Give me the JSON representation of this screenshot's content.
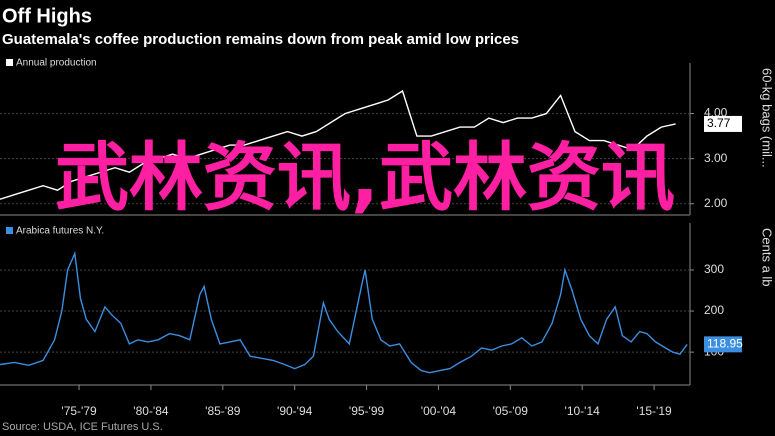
{
  "header": {
    "title": "Off Highs",
    "subtitle": "Guatemala's coffee production remains down from peak amid low prices"
  },
  "source": "Source: USDA, ICE Futures U.S.",
  "overlay": "武林资讯,武林资讯",
  "chart_data": [
    {
      "type": "line",
      "ylabel": "60-kg bags (mil...",
      "x": [
        1972,
        1973,
        1974,
        1975,
        1976,
        1977,
        1978,
        1979,
        1980,
        1981,
        1982,
        1983,
        1984,
        1985,
        1986,
        1987,
        1988,
        1989,
        1990,
        1991,
        1992,
        1993,
        1994,
        1995,
        1996,
        1997,
        1998,
        1999,
        2000,
        2001,
        2002,
        2003,
        2004,
        2005,
        2006,
        2007,
        2008,
        2009,
        2010,
        2011,
        2012,
        2013,
        2014,
        2015,
        2016,
        2017,
        2018,
        2019
      ],
      "series": [
        {
          "name": "Annual production",
          "color": "#ffffff",
          "values": [
            2.1,
            2.2,
            2.3,
            2.4,
            2.3,
            2.5,
            2.6,
            2.7,
            2.8,
            2.7,
            2.9,
            3.0,
            3.1,
            3.0,
            3.1,
            3.2,
            3.3,
            3.3,
            3.4,
            3.5,
            3.6,
            3.5,
            3.6,
            3.8,
            4.0,
            4.1,
            4.2,
            4.3,
            4.5,
            3.5,
            3.5,
            3.6,
            3.7,
            3.7,
            3.9,
            3.8,
            3.9,
            3.9,
            4.0,
            4.4,
            3.6,
            3.4,
            3.4,
            3.3,
            3.2,
            3.5,
            3.7,
            3.77
          ]
        }
      ],
      "xlim": [
        1972,
        2020
      ],
      "ylim": [
        1.75,
        4.9
      ],
      "yticks": [
        {
          "value": 2,
          "label": "2.00"
        },
        {
          "value": 3,
          "label": "3.00"
        },
        {
          "value": 4,
          "label": "4.00"
        }
      ],
      "grid": true
    },
    {
      "type": "line",
      "ylabel": "Cents a lb",
      "x": [
        1972,
        1973,
        1974,
        1975,
        1975.8,
        1976.3,
        1976.7,
        1977.2,
        1977.6,
        1978,
        1978.6,
        1979.3,
        1979.8,
        1980.4,
        1981,
        1981.6,
        1982.3,
        1983,
        1983.8,
        1984.5,
        1985.2,
        1985.9,
        1986.2,
        1986.7,
        1987.3,
        1988,
        1988.7,
        1989.4,
        1990.2,
        1991,
        1991.8,
        1992.5,
        1993.2,
        1993.8,
        1994.5,
        1994.9,
        1995.5,
        1996.3,
        1997.2,
        1997.4,
        1997.9,
        1998.5,
        1999.1,
        1999.8,
        2000.6,
        2001.3,
        2001.9,
        2002.6,
        2003.3,
        2004,
        2004.8,
        2005.5,
        2006.2,
        2006.9,
        2007.6,
        2008.3,
        2009,
        2009.7,
        2010.4,
        2011,
        2011.3,
        2011.8,
        2012.4,
        2013,
        2013.6,
        2014.2,
        2014.8,
        2015.3,
        2015.9,
        2016.5,
        2017,
        2017.6,
        2018.3,
        2018.8,
        2019.3,
        2019.8
      ],
      "series": [
        {
          "name": "Arabica futures N.Y.",
          "color": "#3b8ee0",
          "values": [
            70,
            75,
            68,
            80,
            130,
            200,
            300,
            340,
            230,
            180,
            150,
            210,
            190,
            170,
            120,
            130,
            125,
            130,
            145,
            140,
            130,
            240,
            260,
            180,
            120,
            125,
            130,
            90,
            85,
            80,
            70,
            60,
            70,
            90,
            220,
            180,
            150,
            120,
            270,
            300,
            180,
            130,
            115,
            120,
            75,
            55,
            50,
            55,
            60,
            75,
            90,
            110,
            105,
            115,
            120,
            135,
            115,
            125,
            170,
            240,
            300,
            250,
            180,
            140,
            120,
            180,
            210,
            140,
            125,
            150,
            145,
            125,
            110,
            100,
            95,
            118.95
          ]
        }
      ],
      "xlim": [
        1972,
        2020
      ],
      "ylim": [
        20,
        390
      ],
      "yticks": [
        100,
        200,
        300
      ],
      "xticks": [
        {
          "value": 1977.5,
          "label": "'75-'79"
        },
        {
          "value": 1982.5,
          "label": "'80-'84"
        },
        {
          "value": 1987.5,
          "label": "'85-'89"
        },
        {
          "value": 1992.5,
          "label": "'90-'94"
        },
        {
          "value": 1997.5,
          "label": "'95-'99"
        },
        {
          "value": 2002.5,
          "label": "'00-'04"
        },
        {
          "value": 2007.5,
          "label": "'05-'09"
        },
        {
          "value": 2012.5,
          "label": "'10-'14"
        },
        {
          "value": 2017.5,
          "label": "'15-'19"
        }
      ],
      "grid": true
    }
  ]
}
